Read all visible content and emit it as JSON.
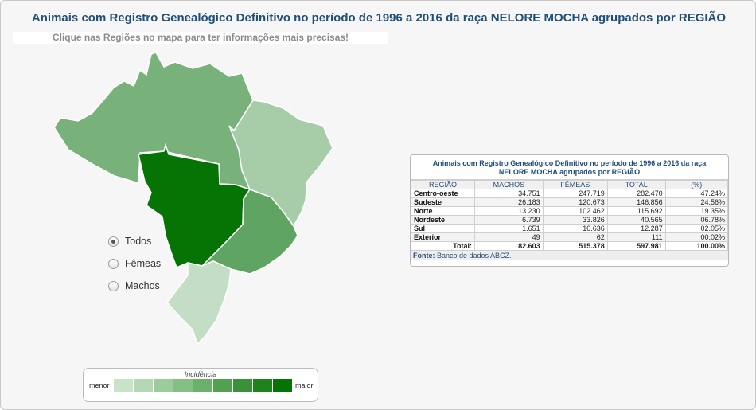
{
  "title": "Animais com Registro Genealógico Definitivo no período de 1996 a 2016 da raça NELORE MOCHA agrupados por REGIÃO",
  "instruction": "Clique nas Regiões no mapa para ter informações mais precisas!",
  "map": {
    "regions": [
      {
        "name": "Norte",
        "color": "#78b27a"
      },
      {
        "name": "Nordeste",
        "color": "#a7cda8"
      },
      {
        "name": "Centro-oeste",
        "color": "#057405"
      },
      {
        "name": "Sudeste",
        "color": "#5fa463"
      },
      {
        "name": "Sul",
        "color": "#c3dec4"
      }
    ]
  },
  "filters": {
    "options": [
      {
        "label": "Todos",
        "checked": true
      },
      {
        "label": "Fêmeas",
        "checked": false
      },
      {
        "label": "Machos",
        "checked": false
      }
    ]
  },
  "legend": {
    "title": "Incidência",
    "min_label": "menor",
    "max_label": "maior",
    "colors": [
      "#c9e3c9",
      "#b4d8b4",
      "#9ccb9c",
      "#85bf85",
      "#6bb06b",
      "#52a152",
      "#3a913a",
      "#1f821f",
      "#057405"
    ]
  },
  "table": {
    "title": "Animais com Registro Genealógico Definitivo no período de 1996 a 2016 da raça NELORE MOCHA agrupados por REGIÃO",
    "headers": [
      "REGIÃO",
      "MACHOS",
      "FÊMEAS",
      "TOTAL",
      "(%)"
    ],
    "rows": [
      [
        "Centro-oeste",
        "34.751",
        "247.719",
        "282.470",
        "47.24%"
      ],
      [
        "Sudeste",
        "26.183",
        "120.673",
        "146.856",
        "24.56%"
      ],
      [
        "Norte",
        "13.230",
        "102.462",
        "115.692",
        "19.35%"
      ],
      [
        "Nordeste",
        "6.739",
        "33.826",
        "40.565",
        "06.78%"
      ],
      [
        "Sul",
        "1.651",
        "10.636",
        "12.287",
        "02.05%"
      ],
      [
        "Exterior",
        "49",
        "62",
        "111",
        "00.02%"
      ]
    ],
    "total": [
      "Total:",
      "82.603",
      "515.378",
      "597.981",
      "100.00%"
    ],
    "source_label": "Fonte:",
    "source_text": " Banco de dados ABCZ."
  }
}
